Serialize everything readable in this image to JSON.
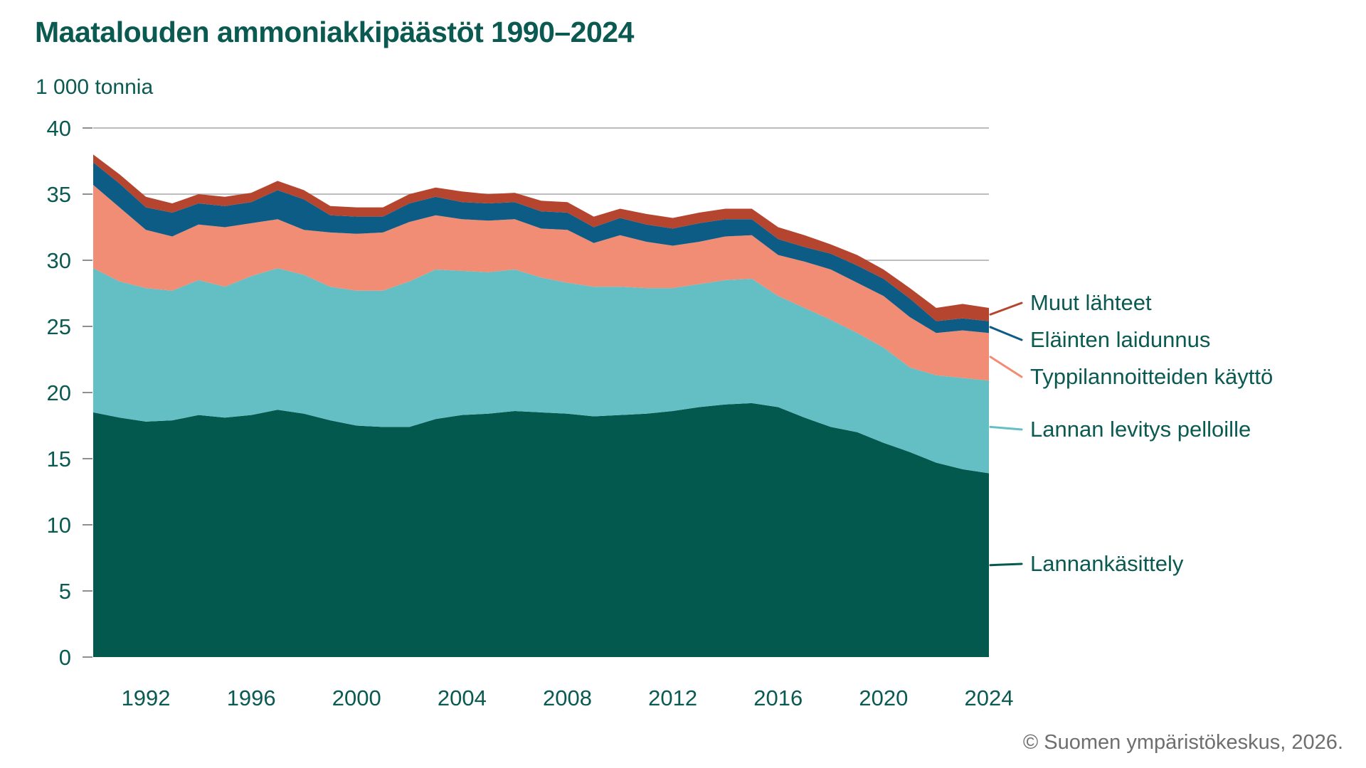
{
  "header": {
    "title": "Maatalouden ammoniakkipäästöt 1990–2024",
    "unit_label": "1 000 tonnia"
  },
  "chart_data": {
    "type": "area",
    "stacked": true,
    "title": "Maatalouden ammoniakkipäästöt 1990–2024",
    "ylabel": "1 000 tonnia",
    "xlabel": "",
    "ylim": [
      0,
      40
    ],
    "y_ticks": [
      0,
      5,
      10,
      15,
      20,
      25,
      30,
      35,
      40
    ],
    "x_tick_labels": [
      "1992",
      "1996",
      "2000",
      "2004",
      "2008",
      "2012",
      "2016",
      "2020",
      "2024"
    ],
    "grid": "horizontal",
    "legend_position": "right",
    "x": [
      1990,
      1991,
      1992,
      1993,
      1994,
      1995,
      1996,
      1997,
      1998,
      1999,
      2000,
      2001,
      2002,
      2003,
      2004,
      2005,
      2006,
      2007,
      2008,
      2009,
      2010,
      2011,
      2012,
      2013,
      2014,
      2015,
      2016,
      2017,
      2018,
      2019,
      2020,
      2021,
      2022,
      2023,
      2024
    ],
    "series": [
      {
        "name": "Lannankäsittely",
        "color": "#04594F",
        "values": [
          18.5,
          18.1,
          17.8,
          17.9,
          18.3,
          18.1,
          18.3,
          18.7,
          18.4,
          17.9,
          17.5,
          17.4,
          17.4,
          18.0,
          18.3,
          18.4,
          18.6,
          18.5,
          18.4,
          18.2,
          18.3,
          18.4,
          18.6,
          18.9,
          19.1,
          19.2,
          18.9,
          18.1,
          17.4,
          17.0,
          16.2,
          15.5,
          14.7,
          14.2,
          13.9
        ]
      },
      {
        "name": "Lannan levitys pelloille",
        "color": "#64BFC5",
        "values": [
          10.9,
          10.3,
          10.1,
          9.8,
          10.2,
          9.9,
          10.5,
          10.7,
          10.5,
          10.1,
          10.2,
          10.3,
          11.0,
          11.3,
          10.9,
          10.7,
          10.7,
          10.2,
          9.9,
          9.8,
          9.7,
          9.5,
          9.3,
          9.3,
          9.4,
          9.4,
          8.4,
          8.3,
          8.1,
          7.5,
          7.2,
          6.4,
          6.6,
          6.9,
          7.0
        ]
      },
      {
        "name": "Typpilannoitteiden käyttö",
        "color": "#F08D74",
        "values": [
          6.3,
          5.6,
          4.4,
          4.1,
          4.2,
          4.5,
          4.0,
          3.7,
          3.4,
          4.1,
          4.3,
          4.4,
          4.5,
          4.1,
          3.9,
          3.9,
          3.8,
          3.7,
          4.0,
          3.3,
          3.9,
          3.5,
          3.2,
          3.2,
          3.3,
          3.3,
          3.1,
          3.5,
          3.8,
          3.8,
          3.9,
          3.8,
          3.2,
          3.6,
          3.6
        ]
      },
      {
        "name": "Eläinten laidunnus",
        "color": "#0D5C85",
        "values": [
          1.7,
          1.8,
          1.7,
          1.8,
          1.6,
          1.6,
          1.6,
          2.2,
          2.3,
          1.3,
          1.3,
          1.2,
          1.4,
          1.4,
          1.3,
          1.3,
          1.3,
          1.3,
          1.3,
          1.2,
          1.3,
          1.3,
          1.3,
          1.4,
          1.3,
          1.2,
          1.2,
          1.1,
          1.2,
          1.3,
          1.3,
          1.4,
          0.9,
          0.9,
          0.9
        ]
      },
      {
        "name": "Muut lähteet",
        "color": "#B5452F",
        "values": [
          0.6,
          0.7,
          0.8,
          0.7,
          0.7,
          0.7,
          0.7,
          0.7,
          0.7,
          0.7,
          0.7,
          0.7,
          0.7,
          0.7,
          0.8,
          0.7,
          0.7,
          0.8,
          0.8,
          0.8,
          0.7,
          0.8,
          0.8,
          0.8,
          0.8,
          0.8,
          0.9,
          0.9,
          0.7,
          0.8,
          0.7,
          0.8,
          1.0,
          1.1,
          1.0
        ]
      }
    ]
  },
  "legend": {
    "items": [
      {
        "label": "Muut lähteet",
        "color": "#B5452F",
        "series_index": 4
      },
      {
        "label": "Eläinten laidunnus",
        "color": "#0D5C85",
        "series_index": 3
      },
      {
        "label": "Typpilannoitteiden käyttö",
        "color": "#F08D74",
        "series_index": 2
      },
      {
        "label": "Lannan levitys pelloille",
        "color": "#64BFC5",
        "series_index": 1
      },
      {
        "label": "Lannankäsittely",
        "color": "#04594F",
        "series_index": 0
      }
    ]
  },
  "footer": {
    "copyright": "© Suomen ympäristökeskus, 2026."
  },
  "colors": {
    "title_text": "#0B5A52",
    "axis_text": "#0B5A52",
    "gridline": "#BDBDBD",
    "tick": "#8F8F8F",
    "footer_text": "#6E6E6E",
    "background": "#FFFFFF"
  }
}
